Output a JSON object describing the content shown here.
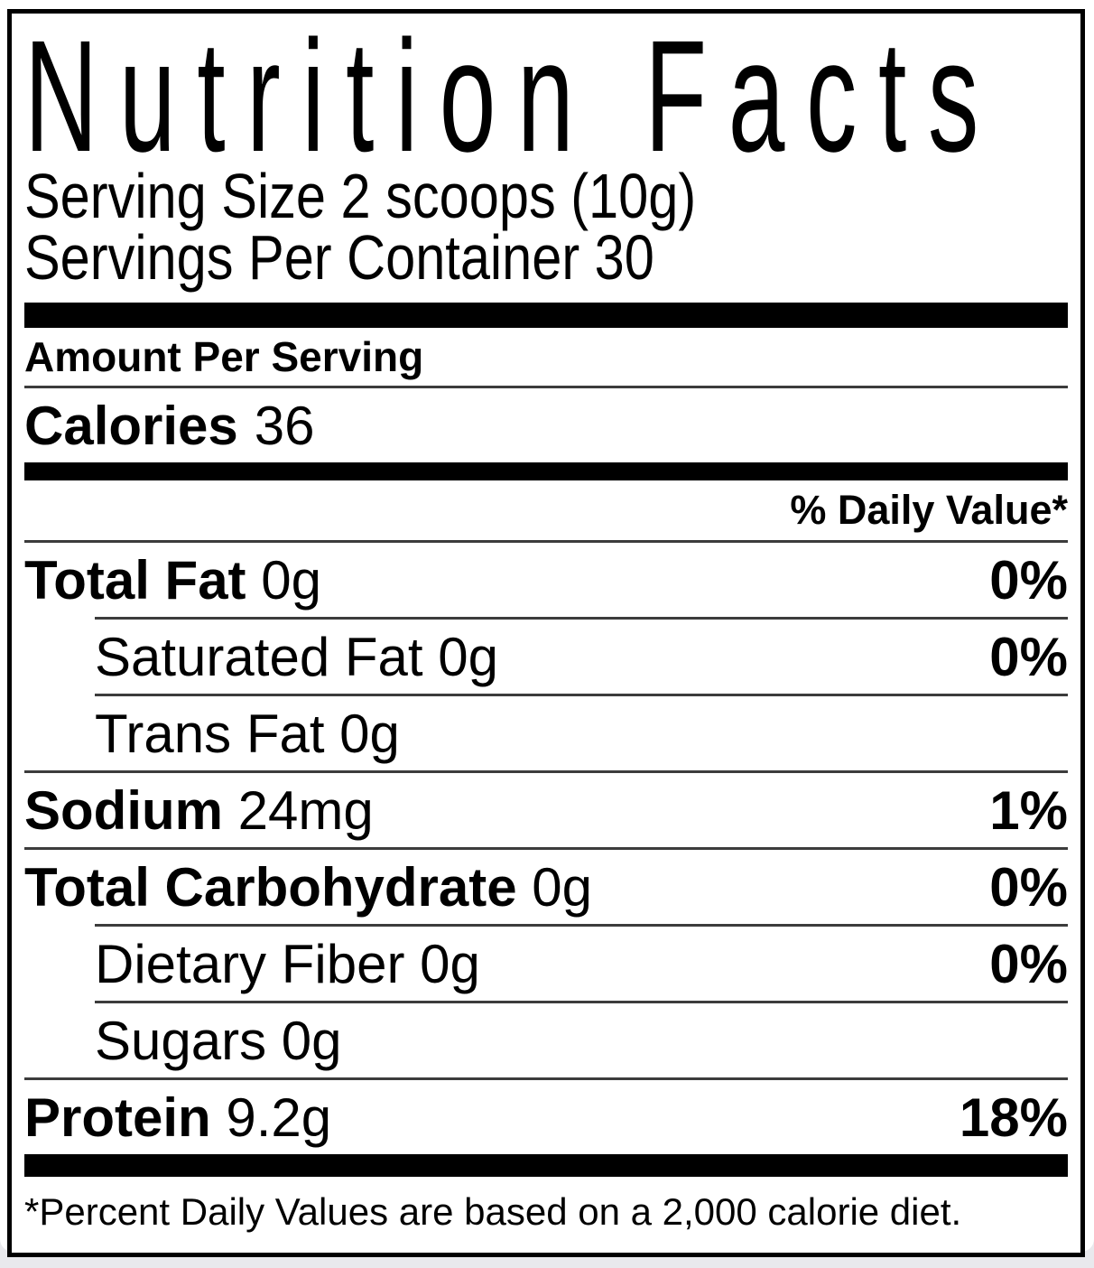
{
  "label": {
    "title": "Nutrition Facts",
    "serving_size": "Serving Size 2 scoops (10g)",
    "servings_per_container": "Servings Per Container 30",
    "amount_per_serving": "Amount Per Serving",
    "calories": {
      "name": "Calories",
      "value": "36"
    },
    "daily_value_header": "% Daily Value*",
    "rows": [
      {
        "name": "Total Fat",
        "amount": "0g",
        "dv": "0%",
        "sub": false,
        "sep": "full"
      },
      {
        "name": "Saturated Fat",
        "amount": "0g",
        "dv": "0%",
        "sub": true,
        "sep": "indent"
      },
      {
        "name": "Trans Fat",
        "amount": "0g",
        "dv": "",
        "sub": true,
        "sep": "indent"
      },
      {
        "name": "Sodium",
        "amount": "24mg",
        "dv": "1%",
        "sub": false,
        "sep": "full"
      },
      {
        "name": "Total Carbohydrate",
        "amount": "0g",
        "dv": "0%",
        "sub": false,
        "sep": "full"
      },
      {
        "name": "Dietary Fiber",
        "amount": "0g",
        "dv": "0%",
        "sub": true,
        "sep": "indent"
      },
      {
        "name": "Sugars",
        "amount": "0g",
        "dv": "",
        "sub": true,
        "sep": "indent"
      },
      {
        "name": "Protein",
        "amount": "9.2g",
        "dv": "18%",
        "sub": false,
        "sep": "full"
      }
    ],
    "footnote": "*Percent Daily Values are based on a 2,000 calorie diet.",
    "colors": {
      "text": "#000000",
      "label_background": "#ffffff",
      "page_background": "#e9e9ed",
      "thick_bar": "#000000",
      "thin_rule": "#3c3c3c"
    }
  }
}
